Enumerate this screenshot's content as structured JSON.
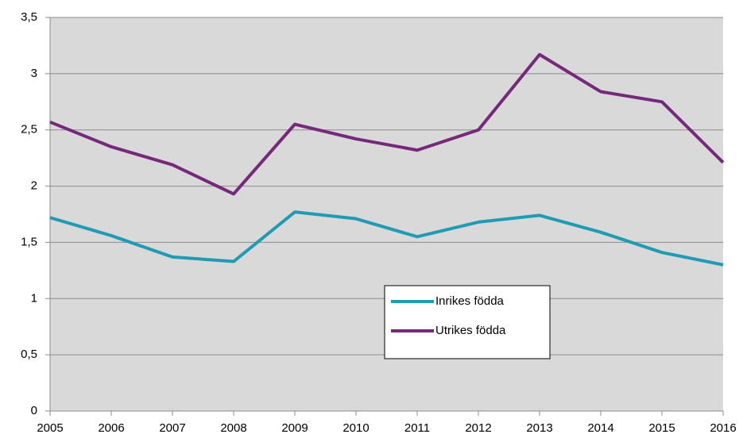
{
  "chart_data": {
    "type": "line",
    "categories": [
      "2005",
      "2006",
      "2007",
      "2008",
      "2009",
      "2010",
      "2011",
      "2012",
      "2013",
      "2014",
      "2015",
      "2016"
    ],
    "series": [
      {
        "name": "Inrikes födda",
        "color": "#1f9bb3",
        "values": [
          1.72,
          1.56,
          1.37,
          1.33,
          1.77,
          1.71,
          1.55,
          1.68,
          1.74,
          1.59,
          1.41,
          1.3
        ]
      },
      {
        "name": "Utrikes födda",
        "color": "#76287a",
        "values": [
          2.57,
          2.35,
          2.19,
          1.93,
          2.55,
          2.42,
          2.32,
          2.5,
          3.17,
          2.84,
          2.75,
          2.21
        ]
      }
    ],
    "ylim": [
      0,
      3.5
    ],
    "yticks": [
      0,
      {
        "value": 0.5,
        "label": "0,5"
      },
      1,
      {
        "value": 1.5,
        "label": "1,5"
      },
      2,
      {
        "value": 2.5,
        "label": "2,5"
      },
      3,
      {
        "value": 3.5,
        "label": "3,5"
      }
    ],
    "grid": true,
    "legend": "center"
  }
}
